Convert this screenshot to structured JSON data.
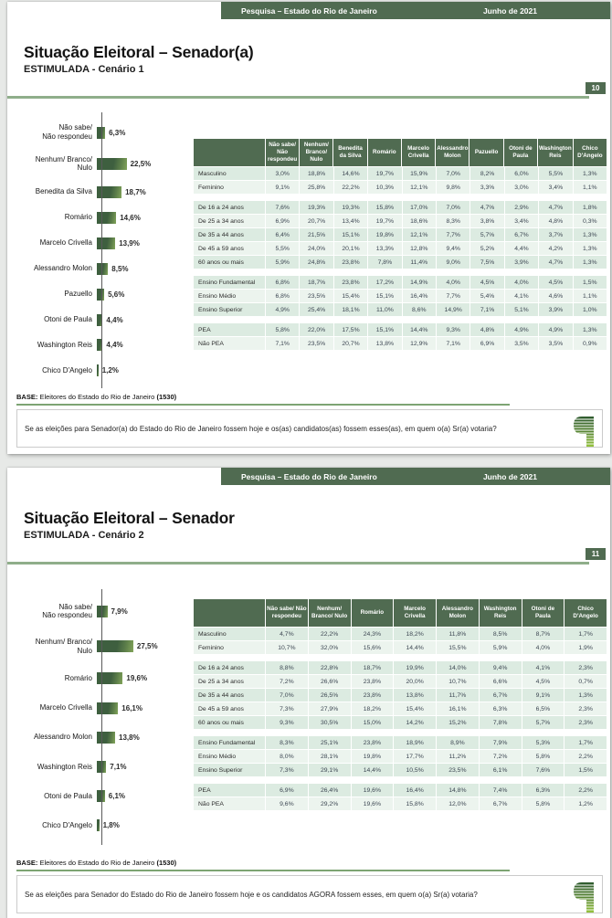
{
  "colors": {
    "band_green": "#506b51",
    "rule_green": "#8fae8a",
    "bar_green_dark": "#3e5f3f",
    "bar_green_light": "#82a45a",
    "row_stripe_dark": "#dcebe1",
    "row_stripe_light": "#ecf4ee"
  },
  "chart_data": [
    {
      "type": "bar",
      "orientation": "horizontal",
      "categories": [
        "Não sabe/\nNão respondeu",
        "Nenhum/ Branco/\nNulo",
        "Benedita da Silva",
        "Romário",
        "Marcelo Crivella",
        "Alessandro Molon",
        "Pazuello",
        "Otoni de Paula",
        "Washington Reis",
        "Chico D'Angelo"
      ],
      "values": [
        6.3,
        22.5,
        18.7,
        14.6,
        13.9,
        8.5,
        5.6,
        4.4,
        4.4,
        1.2
      ],
      "value_labels": [
        "6,3%",
        "22,5%",
        "18,7%",
        "14,6%",
        "13,9%",
        "8,5%",
        "5,6%",
        "4,4%",
        "4,4%",
        "1,2%"
      ],
      "unit": "%",
      "xlim": [
        0,
        30
      ],
      "grid": false,
      "legend": false
    },
    {
      "type": "bar",
      "orientation": "horizontal",
      "categories": [
        "Não sabe/\nNão respondeu",
        "Nenhum/ Branco/\nNulo",
        "Romário",
        "Marcelo Crivella",
        "Alessandro Molon",
        "Washington Reis",
        "Otoni de Paula",
        "Chico D'Angelo"
      ],
      "values": [
        7.9,
        27.5,
        19.6,
        16.1,
        13.8,
        7.1,
        6.1,
        1.8
      ],
      "value_labels": [
        "7,9%",
        "27,5%",
        "19,6%",
        "16,1%",
        "13,8%",
        "7,1%",
        "6,1%",
        "1,8%"
      ],
      "unit": "%",
      "xlim": [
        0,
        30
      ],
      "grid": false,
      "legend": false
    }
  ],
  "slides": [
    {
      "band": {
        "left_text": "Pesquisa – Estado do Rio de Janeiro",
        "right_text": "Junho de 2021"
      },
      "title": "Situação Eleitoral – Senador(a)",
      "subtitle": "ESTIMULADA - Cenário 1",
      "page_number": "10",
      "table": {
        "header": [
          "Não sabe/ Não respondeu",
          "Nenhum/ Branco/ Nulo",
          "Benedita da Silva",
          "Romário",
          "Marcelo Crivella",
          "Alessandro Molon",
          "Pazuello",
          "Otoni de Paula",
          "Washington Reis",
          "Chico D'Angelo"
        ],
        "groups": [
          {
            "rows": [
              {
                "label": "Masculino",
                "values": [
                  "3,0%",
                  "18,8%",
                  "14,6%",
                  "19,7%",
                  "15,9%",
                  "7,0%",
                  "8,2%",
                  "6,0%",
                  "5,5%",
                  "1,3%"
                ]
              },
              {
                "label": "Feminino",
                "values": [
                  "9,1%",
                  "25,8%",
                  "22,2%",
                  "10,3%",
                  "12,1%",
                  "9,8%",
                  "3,3%",
                  "3,0%",
                  "3,4%",
                  "1,1%"
                ]
              }
            ]
          },
          {
            "rows": [
              {
                "label": "De 16 a 24 anos",
                "values": [
                  "7,6%",
                  "19,3%",
                  "19,3%",
                  "15,8%",
                  "17,0%",
                  "7,0%",
                  "4,7%",
                  "2,9%",
                  "4,7%",
                  "1,8%"
                ]
              },
              {
                "label": "De 25 a 34 anos",
                "values": [
                  "6,9%",
                  "20,7%",
                  "13,4%",
                  "19,7%",
                  "18,6%",
                  "8,3%",
                  "3,8%",
                  "3,4%",
                  "4,8%",
                  "0,3%"
                ]
              },
              {
                "label": "De 35 a 44 anos",
                "values": [
                  "6,4%",
                  "21,5%",
                  "15,1%",
                  "19,8%",
                  "12,1%",
                  "7,7%",
                  "5,7%",
                  "6,7%",
                  "3,7%",
                  "1,3%"
                ]
              },
              {
                "label": "De 45 a 59 anos",
                "values": [
                  "5,5%",
                  "24,0%",
                  "20,1%",
                  "13,3%",
                  "12,8%",
                  "9,4%",
                  "5,2%",
                  "4,4%",
                  "4,2%",
                  "1,3%"
                ]
              },
              {
                "label": "60 anos ou mais",
                "values": [
                  "5,9%",
                  "24,8%",
                  "23,8%",
                  "7,8%",
                  "11,4%",
                  "9,0%",
                  "7,5%",
                  "3,9%",
                  "4,7%",
                  "1,3%"
                ]
              }
            ]
          },
          {
            "rows": [
              {
                "label": "Ensino Fundamental",
                "values": [
                  "6,8%",
                  "18,7%",
                  "23,8%",
                  "17,2%",
                  "14,9%",
                  "4,0%",
                  "4,5%",
                  "4,0%",
                  "4,5%",
                  "1,5%"
                ]
              },
              {
                "label": "Ensino Médio",
                "values": [
                  "6,8%",
                  "23,5%",
                  "15,4%",
                  "15,1%",
                  "16,4%",
                  "7,7%",
                  "5,4%",
                  "4,1%",
                  "4,6%",
                  "1,1%"
                ]
              },
              {
                "label": "Ensino Superior",
                "values": [
                  "4,9%",
                  "25,4%",
                  "18,1%",
                  "11,0%",
                  "8,6%",
                  "14,9%",
                  "7,1%",
                  "5,1%",
                  "3,9%",
                  "1,0%"
                ]
              }
            ]
          },
          {
            "rows": [
              {
                "label": "PEA",
                "values": [
                  "5,8%",
                  "22,0%",
                  "17,5%",
                  "15,1%",
                  "14,4%",
                  "9,3%",
                  "4,8%",
                  "4,9%",
                  "4,9%",
                  "1,3%"
                ]
              },
              {
                "label": "Não PEA",
                "values": [
                  "7,1%",
                  "23,5%",
                  "20,7%",
                  "13,8%",
                  "12,9%",
                  "7,1%",
                  "6,9%",
                  "3,5%",
                  "3,5%",
                  "0,9%"
                ]
              }
            ]
          }
        ]
      },
      "base": {
        "label": "BASE:",
        "text": "Eleitores do Estado do Rio de Janeiro",
        "count": "(1530)"
      },
      "question": "Se as eleições para Senador(a) do Estado do Rio de Janeiro fossem hoje e os(as) candidatos(as) fossem esses(as), em quem o(a) Sr(a) votaria?"
    },
    {
      "band": {
        "left_text": "Pesquisa – Estado do Rio de Janeiro",
        "right_text": "Junho de 2021"
      },
      "title": "Situação Eleitoral – Senador",
      "subtitle": "ESTIMULADA - Cenário 2",
      "page_number": "11",
      "table": {
        "header": [
          "Não sabe/ Não respondeu",
          "Nenhum/ Branco/ Nulo",
          "Romário",
          "Marcelo Crivella",
          "Alessandro Molon",
          "Washington Reis",
          "Otoni de Paula",
          "Chico D'Angelo"
        ],
        "groups": [
          {
            "rows": [
              {
                "label": "Masculino",
                "values": [
                  "4,7%",
                  "22,2%",
                  "24,3%",
                  "18,2%",
                  "11,8%",
                  "8,5%",
                  "8,7%",
                  "1,7%"
                ]
              },
              {
                "label": "Feminino",
                "values": [
                  "10,7%",
                  "32,0%",
                  "15,6%",
                  "14,4%",
                  "15,5%",
                  "5,9%",
                  "4,0%",
                  "1,9%"
                ]
              }
            ]
          },
          {
            "rows": [
              {
                "label": "De 16 a 24 anos",
                "values": [
                  "8,8%",
                  "22,8%",
                  "18,7%",
                  "19,9%",
                  "14,0%",
                  "9,4%",
                  "4,1%",
                  "2,3%"
                ]
              },
              {
                "label": "De 25 a 34 anos",
                "values": [
                  "7,2%",
                  "26,6%",
                  "23,8%",
                  "20,0%",
                  "10,7%",
                  "6,6%",
                  "4,5%",
                  "0,7%"
                ]
              },
              {
                "label": "De 35 a 44 anos",
                "values": [
                  "7,0%",
                  "26,5%",
                  "23,8%",
                  "13,8%",
                  "11,7%",
                  "6,7%",
                  "9,1%",
                  "1,3%"
                ]
              },
              {
                "label": "De 45 a 59 anos",
                "values": [
                  "7,3%",
                  "27,9%",
                  "18,2%",
                  "15,4%",
                  "16,1%",
                  "6,3%",
                  "6,5%",
                  "2,3%"
                ]
              },
              {
                "label": "60 anos ou mais",
                "values": [
                  "9,3%",
                  "30,5%",
                  "15,0%",
                  "14,2%",
                  "15,2%",
                  "7,8%",
                  "5,7%",
                  "2,3%"
                ]
              }
            ]
          },
          {
            "rows": [
              {
                "label": "Ensino Fundamental",
                "values": [
                  "8,3%",
                  "25,1%",
                  "23,8%",
                  "18,9%",
                  "8,9%",
                  "7,9%",
                  "5,3%",
                  "1,7%"
                ]
              },
              {
                "label": "Ensino Médio",
                "values": [
                  "8,0%",
                  "28,1%",
                  "19,8%",
                  "17,7%",
                  "11,2%",
                  "7,2%",
                  "5,8%",
                  "2,2%"
                ]
              },
              {
                "label": "Ensino Superior",
                "values": [
                  "7,3%",
                  "29,1%",
                  "14,4%",
                  "10,5%",
                  "23,5%",
                  "6,1%",
                  "7,6%",
                  "1,5%"
                ]
              }
            ]
          },
          {
            "rows": [
              {
                "label": "PEA",
                "values": [
                  "6,9%",
                  "26,4%",
                  "19,6%",
                  "16,4%",
                  "14,8%",
                  "7,4%",
                  "6,3%",
                  "2,2%"
                ]
              },
              {
                "label": "Não PEA",
                "values": [
                  "9,6%",
                  "29,2%",
                  "19,6%",
                  "15,8%",
                  "12,0%",
                  "6,7%",
                  "5,8%",
                  "1,2%"
                ]
              }
            ]
          }
        ]
      },
      "base": {
        "label": "BASE:",
        "text": "Eleitores do Estado do Rio de Janeiro",
        "count": "(1530)"
      },
      "question": "Se as eleições para Senador do Estado do Rio de Janeiro fossem hoje e os candidatos AGORA fossem esses, em quem o(a) Sr(a) votaria?"
    }
  ]
}
